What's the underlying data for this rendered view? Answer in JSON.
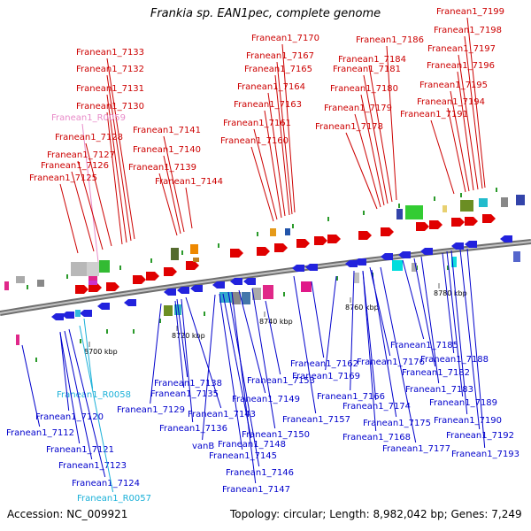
{
  "title": "Frankia sp. EAN1pec, complete genome",
  "footer": {
    "accession": "Accession: NC_009921",
    "summary": "Topology: circular; Length: 8,982,042 bp; Genes: 7,249"
  },
  "colors": {
    "top_labels": "#cc0000",
    "bottom_labels": "#0000cc",
    "rna_top": "#e88ac8",
    "rna_bottom": "#1ab0d8",
    "backbone": "#888888"
  },
  "ticks": [
    "8700 kbp",
    "8720 kbp",
    "8740 kbp",
    "8760 kbp",
    "8780 kbp"
  ],
  "top_labels": [
    "Franean1_7133",
    "Franean1_7132",
    "Franean1_7131",
    "Franean1_7130",
    "Franean1_R0059",
    "Franean1_7128",
    "Franean1_7127",
    "Franean1_7126",
    "Franean1_7125",
    "Franean1_7141",
    "Franean1_7140",
    "Franean1_7139",
    "Franean1_7144",
    "Franean1_7170",
    "Franean1_7167",
    "Franean1_7165",
    "Franean1_7164",
    "Franean1_7163",
    "Franean1_7161",
    "Franean1_7160",
    "Franean1_7186",
    "Franean1_7184",
    "Franean1_7181",
    "Franean1_7180",
    "Franean1_7179",
    "Franean1_7178",
    "Franean1_7199",
    "Franean1_7198",
    "Franean1_7197",
    "Franean1_7196",
    "Franean1_7195",
    "Franean1_7194",
    "Franean1_7191"
  ],
  "bottom_labels": [
    "Franean1_R0058",
    "Franean1_7120",
    "Franean1_7112",
    "Franean1_7121",
    "Franean1_7123",
    "Franean1_7124",
    "Franean1_R0057",
    "Franean1_7138",
    "Franean1_7135",
    "Franean1_7129",
    "Franean1_7143",
    "Franean1_7136",
    "vanB",
    "Franean1_7148",
    "Franean1_7145",
    "Franean1_7146",
    "Franean1_7147",
    "Franean1_7153",
    "Franean1_7149",
    "Franean1_7150",
    "Franean1_7162",
    "Franean1_7169",
    "Franean1_7157",
    "Franean1_7166",
    "Franean1_7176",
    "Franean1_7174",
    "Franean1_7168",
    "Franean1_7175",
    "Franean1_7177",
    "Franean1_7185",
    "Franean1_7182",
    "Franean1_7188",
    "Franean1_7183",
    "Franean1_7189",
    "Franean1_7190",
    "Franean1_7192",
    "Franean1_7193"
  ]
}
